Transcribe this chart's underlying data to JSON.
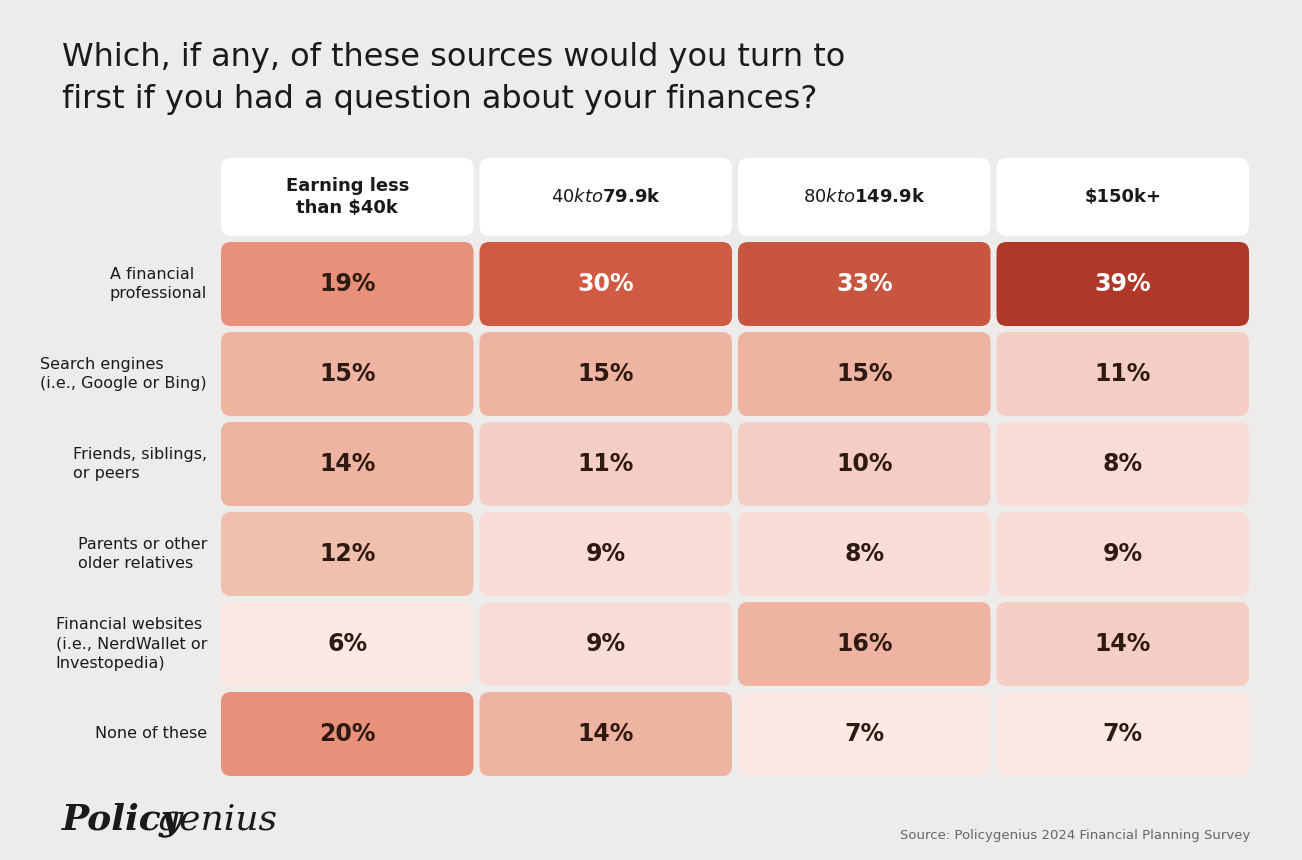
{
  "title": "Which, if any, of these sources would you turn to\nfirst if you had a question about your finances?",
  "background_color": "#edecea",
  "columns": [
    "Earning less\nthan $40k",
    "$40k to $79.9k",
    "$80k to $149.9k",
    "$150k+"
  ],
  "rows": [
    "A financial\nprofessional",
    "Search engines\n(i.e., Google or Bing)",
    "Friends, siblings,\nor peers",
    "Parents or other\nolder relatives",
    "Financial websites\n(i.e., NerdWallet or\nInvestopedia)",
    "None of these"
  ],
  "values": [
    [
      19,
      30,
      33,
      39
    ],
    [
      15,
      15,
      15,
      11
    ],
    [
      14,
      11,
      10,
      8
    ],
    [
      12,
      9,
      8,
      9
    ],
    [
      6,
      9,
      16,
      14
    ],
    [
      20,
      14,
      7,
      7
    ]
  ],
  "cell_colors": [
    [
      "#e8907a",
      "#d05a42",
      "#c85540",
      "#b03828"
    ],
    [
      "#efb3a2",
      "#efb3a2",
      "#efb3a2",
      "#f4cec4"
    ],
    [
      "#efb3a2",
      "#f4cec4",
      "#f4cec4",
      "#f8ddd6"
    ],
    [
      "#f1bfae",
      "#f8ddd6",
      "#f8ddd6",
      "#f8ddd6"
    ],
    [
      "#fce9e4",
      "#f8ddd6",
      "#efb3a2",
      "#f4cec4"
    ],
    [
      "#e8907a",
      "#efb3a2",
      "#fce9e4",
      "#fce9e4"
    ]
  ],
  "text_colors": [
    [
      "#2e1a10",
      "#ffffff",
      "#ffffff",
      "#ffffff"
    ],
    [
      "#2e1a10",
      "#2e1a10",
      "#2e1a10",
      "#2e1a10"
    ],
    [
      "#2e1a10",
      "#2e1a10",
      "#2e1a10",
      "#2e1a10"
    ],
    [
      "#2e1a10",
      "#2e1a10",
      "#2e1a10",
      "#2e1a10"
    ],
    [
      "#2e1a10",
      "#2e1a10",
      "#2e1a10",
      "#2e1a10"
    ],
    [
      "#2e1a10",
      "#2e1a10",
      "#2e1a10",
      "#2e1a10"
    ]
  ],
  "source_text": "Source: Policygenius 2024 Financial Planning Survey"
}
